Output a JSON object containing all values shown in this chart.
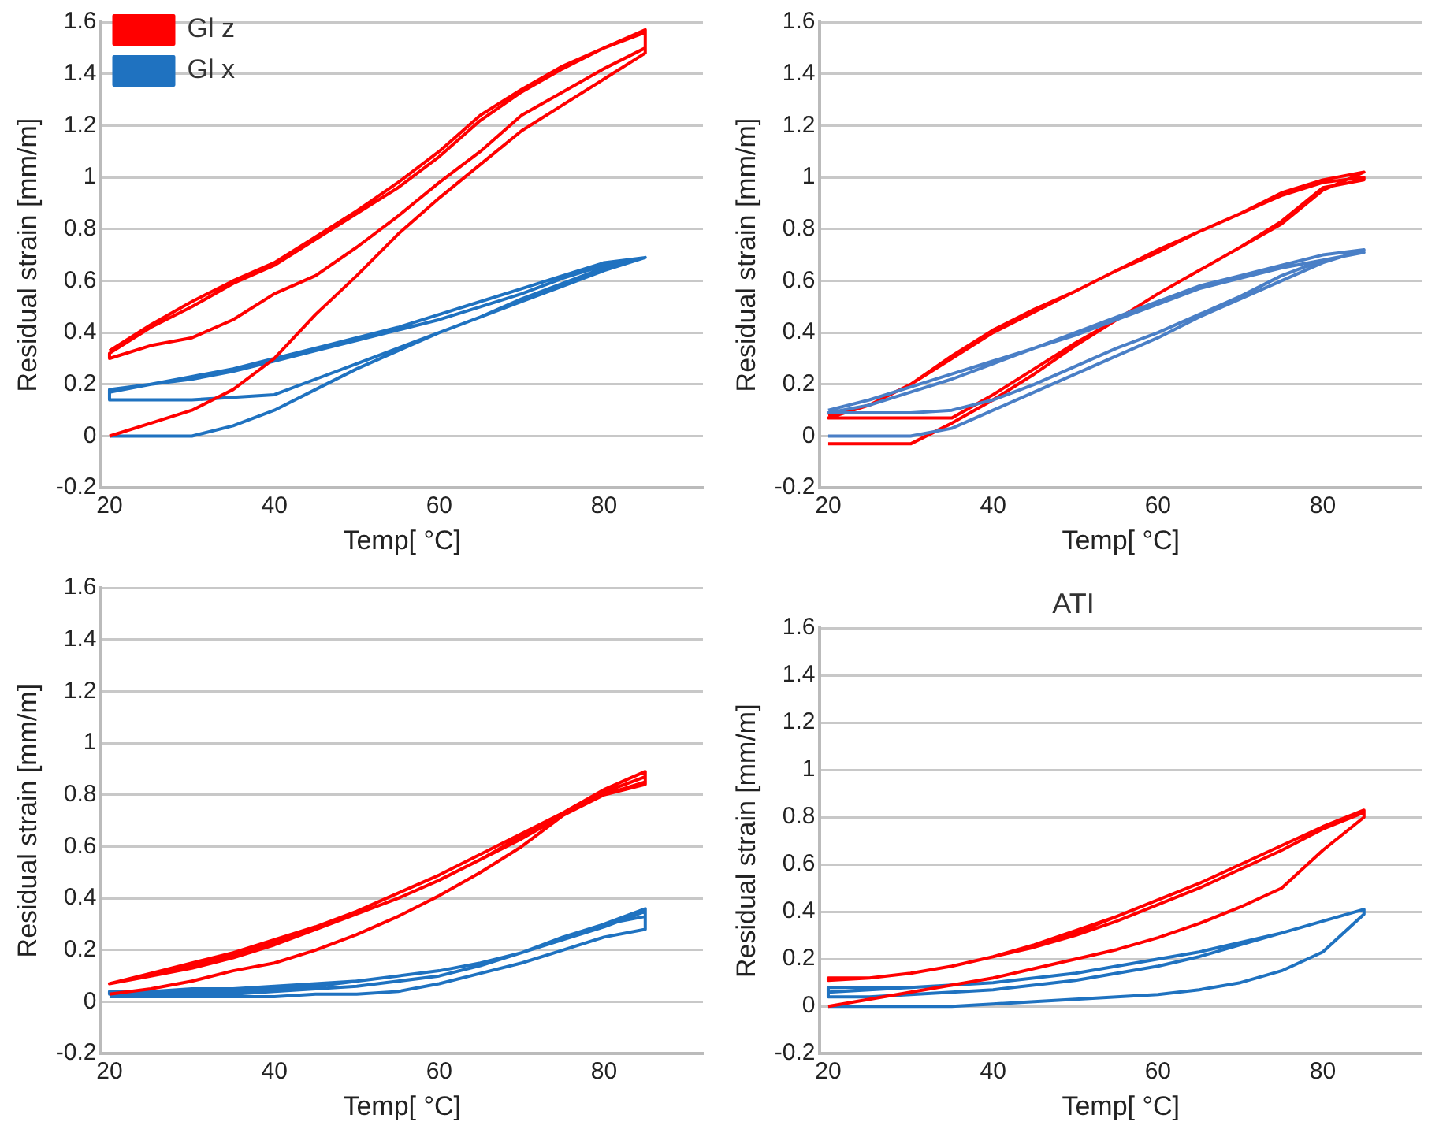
{
  "chart_data": [
    {
      "type": "line",
      "xlabel": "Temp[ °C]",
      "ylabel": "Residual strain [mm/m]",
      "xlim": [
        19,
        92
      ],
      "xticks": [
        20,
        40,
        60,
        80
      ],
      "ylim": [
        -0.2,
        1.6
      ],
      "yticks": [
        -0.2,
        0,
        0.2,
        0.4,
        0.6,
        0.8,
        1,
        1.2,
        1.4,
        1.6
      ],
      "grid": "y",
      "legend": "top left",
      "marker": "none",
      "line_style": "solid",
      "x": [
        20,
        25,
        30,
        35,
        40,
        45,
        50,
        55,
        60,
        65,
        70,
        75,
        80,
        85,
        85,
        80,
        75,
        70,
        65,
        60,
        55,
        50,
        45,
        40,
        35,
        30,
        25,
        20,
        20,
        25,
        30,
        35,
        40,
        45,
        50,
        55,
        60,
        65,
        70,
        75,
        80,
        85,
        85,
        80,
        75,
        70,
        65,
        60,
        55,
        50,
        45,
        40,
        35,
        30,
        25,
        20
      ],
      "series": [
        {
          "name": "Gl z",
          "color": "#ff0000",
          "values": [
            0,
            0.05,
            0.1,
            0.18,
            0.3,
            0.47,
            0.62,
            0.78,
            0.92,
            1.05,
            1.18,
            1.28,
            1.38,
            1.48,
            1.57,
            1.5,
            1.42,
            1.33,
            1.22,
            1.08,
            0.96,
            0.86,
            0.76,
            0.66,
            0.59,
            0.5,
            0.42,
            0.32,
            0.3,
            0.35,
            0.38,
            0.45,
            0.55,
            0.62,
            0.73,
            0.85,
            0.98,
            1.1,
            1.24,
            1.33,
            1.42,
            1.5,
            1.56,
            1.5,
            1.43,
            1.34,
            1.24,
            1.1,
            0.98,
            0.87,
            0.77,
            0.67,
            0.6,
            0.52,
            0.43,
            0.33
          ]
        },
        {
          "name": "Gl x",
          "color": "#1f72c0",
          "values": [
            0,
            0,
            0,
            0.04,
            0.1,
            0.18,
            0.26,
            0.33,
            0.4,
            0.46,
            0.52,
            0.58,
            0.64,
            0.69,
            0.69,
            0.66,
            0.61,
            0.55,
            0.5,
            0.45,
            0.41,
            0.37,
            0.33,
            0.29,
            0.25,
            0.22,
            0.2,
            0.18,
            0.14,
            0.14,
            0.14,
            0.15,
            0.16,
            0.22,
            0.28,
            0.34,
            0.4,
            0.46,
            0.53,
            0.59,
            0.65,
            0.69,
            0.69,
            0.67,
            0.62,
            0.57,
            0.52,
            0.47,
            0.42,
            0.38,
            0.34,
            0.3,
            0.26,
            0.23,
            0.2,
            0.17
          ]
        }
      ]
    },
    {
      "type": "line",
      "xlabel": "Temp[ °C]",
      "ylabel": "Residual strain [mm/m]",
      "xlim": [
        19,
        92
      ],
      "xticks": [
        20,
        40,
        60,
        80
      ],
      "ylim": [
        -0.2,
        1.6
      ],
      "yticks": [
        -0.2,
        0,
        0.2,
        0.4,
        0.6,
        0.8,
        1,
        1.2,
        1.4,
        1.6
      ],
      "grid": "y",
      "marker": "none",
      "line_style": "solid",
      "x": [
        20,
        25,
        30,
        35,
        40,
        45,
        50,
        55,
        60,
        65,
        70,
        75,
        80,
        85,
        85,
        80,
        75,
        70,
        65,
        60,
        55,
        50,
        45,
        40,
        35,
        30,
        25,
        20,
        20,
        25,
        30,
        35,
        40,
        45,
        50,
        55,
        60,
        65,
        70,
        75,
        80,
        85,
        85,
        80,
        75,
        70,
        65,
        60,
        55,
        50,
        45,
        40,
        35,
        30,
        25,
        20
      ],
      "series": [
        {
          "color": "#4a7fc6",
          "values": [
            0,
            0,
            0,
            0.03,
            0.1,
            0.17,
            0.24,
            0.31,
            0.38,
            0.46,
            0.53,
            0.6,
            0.67,
            0.72,
            0.72,
            0.7,
            0.66,
            0.62,
            0.58,
            0.52,
            0.46,
            0.4,
            0.34,
            0.28,
            0.22,
            0.17,
            0.12,
            0.09,
            0.09,
            0.09,
            0.09,
            0.1,
            0.14,
            0.2,
            0.27,
            0.34,
            0.4,
            0.47,
            0.54,
            0.62,
            0.68,
            0.71,
            0.71,
            0.68,
            0.65,
            0.61,
            0.57,
            0.51,
            0.45,
            0.39,
            0.34,
            0.29,
            0.24,
            0.19,
            0.14,
            0.1
          ]
        },
        {
          "color": "#ff0000",
          "values": [
            -0.03,
            -0.03,
            -0.03,
            0.05,
            0.14,
            0.24,
            0.35,
            0.45,
            0.55,
            0.64,
            0.73,
            0.82,
            0.95,
            1.02,
            1.02,
            0.99,
            0.94,
            0.86,
            0.79,
            0.72,
            0.64,
            0.56,
            0.49,
            0.41,
            0.31,
            0.2,
            0.12,
            0.07,
            0.07,
            0.07,
            0.07,
            0.07,
            0.16,
            0.26,
            0.36,
            0.45,
            0.55,
            0.64,
            0.73,
            0.83,
            0.96,
            0.99,
            1,
            0.98,
            0.93,
            0.86,
            0.79,
            0.71,
            0.64,
            0.56,
            0.48,
            0.4,
            0.3,
            0.2,
            0.12,
            0.08
          ]
        }
      ]
    },
    {
      "type": "line",
      "xlabel": "Temp[ °C]",
      "ylabel": "Residual strain [mm/m]",
      "xlim": [
        19,
        92
      ],
      "xticks": [
        20,
        40,
        60,
        80
      ],
      "ylim": [
        -0.2,
        1.6
      ],
      "yticks": [
        -0.2,
        0,
        0.2,
        0.4,
        0.6,
        0.8,
        1,
        1.2,
        1.4,
        1.6
      ],
      "grid": "y",
      "marker": "none",
      "line_style": "solid",
      "x": [
        20,
        25,
        30,
        35,
        40,
        45,
        50,
        55,
        60,
        65,
        70,
        75,
        80,
        85,
        85,
        80,
        75,
        70,
        65,
        60,
        55,
        50,
        45,
        40,
        35,
        30,
        25,
        20,
        20,
        25,
        30,
        35,
        40,
        45,
        50,
        55,
        60,
        65,
        70,
        75,
        80,
        85,
        85,
        80,
        75,
        70,
        65,
        60,
        55,
        50,
        45,
        40,
        35,
        30,
        25,
        20
      ],
      "series": [
        {
          "color": "#ff0000",
          "values": [
            0.03,
            0.05,
            0.08,
            0.12,
            0.15,
            0.2,
            0.26,
            0.33,
            0.41,
            0.5,
            0.6,
            0.72,
            0.8,
            0.84,
            0.89,
            0.82,
            0.73,
            0.64,
            0.55,
            0.47,
            0.4,
            0.34,
            0.28,
            0.23,
            0.18,
            0.14,
            0.1,
            0.07,
            0.07,
            0.1,
            0.13,
            0.17,
            0.22,
            0.28,
            0.34,
            0.4,
            0.47,
            0.55,
            0.63,
            0.72,
            0.8,
            0.85,
            0.87,
            0.81,
            0.73,
            0.65,
            0.57,
            0.49,
            0.42,
            0.35,
            0.29,
            0.24,
            0.19,
            0.15,
            0.11,
            0.07
          ]
        },
        {
          "color": "#1f72c0",
          "values": [
            0.02,
            0.02,
            0.02,
            0.02,
            0.02,
            0.03,
            0.03,
            0.04,
            0.07,
            0.11,
            0.15,
            0.2,
            0.25,
            0.28,
            0.36,
            0.3,
            0.24,
            0.19,
            0.15,
            0.12,
            0.1,
            0.08,
            0.06,
            0.05,
            0.04,
            0.04,
            0.04,
            0.04,
            0.03,
            0.03,
            0.03,
            0.03,
            0.04,
            0.05,
            0.06,
            0.08,
            0.1,
            0.14,
            0.19,
            0.25,
            0.3,
            0.33,
            0.35,
            0.29,
            0.24,
            0.19,
            0.15,
            0.12,
            0.1,
            0.08,
            0.07,
            0.06,
            0.05,
            0.05,
            0.04,
            0.04
          ]
        }
      ]
    },
    {
      "type": "line",
      "title": "ATI",
      "xlabel": "Temp[ °C]",
      "ylabel": "Residual strain [mm/m]",
      "xlim": [
        19,
        92
      ],
      "xticks": [
        20,
        40,
        60,
        80
      ],
      "ylim": [
        -0.2,
        1.6
      ],
      "yticks": [
        -0.2,
        0,
        0.2,
        0.4,
        0.6,
        0.8,
        1,
        1.2,
        1.4,
        1.6
      ],
      "grid": "y",
      "marker": "none",
      "line_style": "solid",
      "x": [
        20,
        25,
        30,
        35,
        40,
        45,
        50,
        55,
        60,
        65,
        70,
        75,
        80,
        85,
        85,
        80,
        75,
        70,
        65,
        60,
        55,
        50,
        45,
        40,
        35,
        30,
        25,
        20,
        20,
        25,
        30,
        35,
        40,
        45,
        50,
        55,
        60,
        65,
        70,
        75,
        80,
        85,
        85,
        80,
        75,
        70,
        65,
        60,
        55,
        50,
        45,
        40,
        35,
        30,
        25,
        20
      ],
      "series": [
        {
          "color": "#ff0000",
          "values": [
            0,
            0.03,
            0.06,
            0.09,
            0.12,
            0.16,
            0.2,
            0.24,
            0.29,
            0.35,
            0.42,
            0.5,
            0.66,
            0.8,
            0.83,
            0.76,
            0.68,
            0.6,
            0.52,
            0.45,
            0.38,
            0.31,
            0.26,
            0.21,
            0.17,
            0.14,
            0.12,
            0.12,
            0.11,
            0.12,
            0.14,
            0.17,
            0.21,
            0.25,
            0.3,
            0.36,
            0.43,
            0.5,
            0.58,
            0.66,
            0.75,
            0.82,
            0.83,
            0.76,
            0.68,
            0.6,
            0.52,
            0.45,
            0.38,
            0.32,
            0.26,
            0.21,
            0.17,
            0.14,
            0.12,
            0.11
          ]
        },
        {
          "color": "#1f72c0",
          "values": [
            0,
            0,
            0,
            0,
            0.01,
            0.02,
            0.03,
            0.04,
            0.05,
            0.07,
            0.1,
            0.15,
            0.23,
            0.39,
            0.41,
            0.36,
            0.31,
            0.27,
            0.23,
            0.2,
            0.17,
            0.14,
            0.12,
            0.1,
            0.09,
            0.08,
            0.08,
            0.08,
            0.04,
            0.04,
            0.05,
            0.06,
            0.07,
            0.09,
            0.11,
            0.14,
            0.17,
            0.21,
            0.26,
            0.31,
            0.36,
            0.41,
            0.41,
            0.36,
            0.31,
            0.27,
            0.23,
            0.2,
            0.17,
            0.14,
            0.12,
            0.1,
            0.09,
            0.08,
            0.07,
            0.06
          ]
        }
      ]
    }
  ]
}
